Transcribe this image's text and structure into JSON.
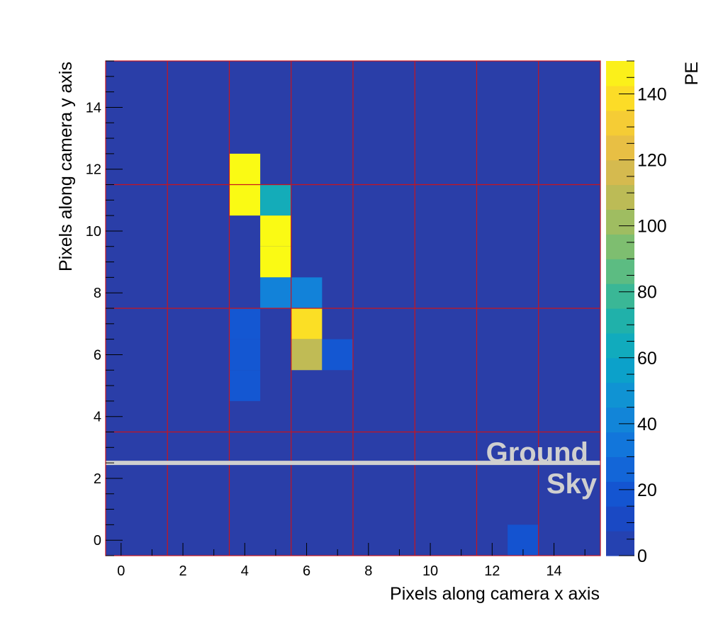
{
  "chart_data": {
    "type": "heatmap",
    "title": "",
    "xlabel": "Pixels along camera x axis",
    "ylabel": "Pixels along camera y axis",
    "x_range": [
      -0.5,
      15.5
    ],
    "y_range": [
      -0.5,
      15.5
    ],
    "x_ticks": [
      0,
      2,
      4,
      6,
      8,
      10,
      12,
      14
    ],
    "y_ticks": [
      0,
      2,
      4,
      6,
      8,
      10,
      12,
      14
    ],
    "colorbar": {
      "label": "PE",
      "range": [
        0,
        150
      ],
      "ticks": [
        0,
        20,
        40,
        60,
        80,
        100,
        120,
        140
      ]
    },
    "background_color": "#2a3ea8",
    "grid_color": "#c8141e",
    "module_boundaries_x": [
      1.5,
      3.5,
      5.5,
      7.5,
      9.5,
      11.5,
      13.5
    ],
    "module_boundaries_y": [
      3.5,
      7.5,
      11.5
    ],
    "horizon_line_y": 2.5,
    "annotations": [
      {
        "text": "Ground"
      },
      {
        "text": "Sky"
      }
    ],
    "cells": [
      {
        "x": 4,
        "y": 12,
        "value": 150
      },
      {
        "x": 4,
        "y": 11,
        "value": 150
      },
      {
        "x": 5,
        "y": 11,
        "value": 65
      },
      {
        "x": 5,
        "y": 10,
        "value": 150
      },
      {
        "x": 5,
        "y": 9,
        "value": 150
      },
      {
        "x": 5,
        "y": 8,
        "value": 40
      },
      {
        "x": 6,
        "y": 8,
        "value": 40
      },
      {
        "x": 6,
        "y": 7,
        "value": 140
      },
      {
        "x": 6,
        "y": 6,
        "value": 110
      },
      {
        "x": 7,
        "y": 6,
        "value": 20
      },
      {
        "x": 4,
        "y": 7,
        "value": 20
      },
      {
        "x": 4,
        "y": 6,
        "value": 20
      },
      {
        "x": 4,
        "y": 5,
        "value": 20
      },
      {
        "x": 13,
        "y": 0,
        "value": 18
      }
    ]
  }
}
